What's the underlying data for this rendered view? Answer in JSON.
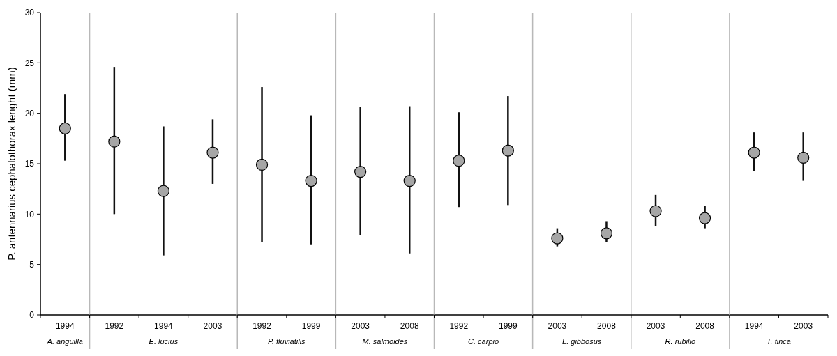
{
  "chart_data": [
    {
      "type": "scatter",
      "xlabel": "A. anguilla",
      "ylabel": "P. antennarius cephalothorax lenght (mm)",
      "categories": [
        "1994"
      ],
      "values": [
        18.5
      ],
      "errors": [
        [
          15.3,
          21.9
        ]
      ],
      "color": "#a6a6a6",
      "marker": "circle",
      "ylim": [
        0,
        30
      ],
      "yticks": [
        0,
        5,
        10,
        15,
        20,
        25,
        30
      ]
    },
    {
      "type": "scatter",
      "xlabel": "E. lucius",
      "categories": [
        "1992",
        "1994",
        "2003"
      ],
      "values": [
        17.2,
        12.3,
        16.1
      ],
      "errors": [
        [
          10.0,
          24.6
        ],
        [
          5.9,
          18.7
        ],
        [
          13.0,
          19.4
        ]
      ],
      "color": "#a6a6a6",
      "marker": "circle",
      "ylim": [
        0,
        30
      ],
      "tick_labels": "x"
    },
    {
      "type": "scatter",
      "xlabel": "P. fluviatilis",
      "categories": [
        "1992",
        "1999"
      ],
      "values": [
        14.9,
        13.3
      ],
      "errors": [
        [
          7.2,
          22.6
        ],
        [
          7.0,
          19.8
        ]
      ],
      "color": "#a6a6a6",
      "marker": "circle",
      "ylim": [
        0,
        30
      ],
      "tick_labels": "x"
    },
    {
      "type": "scatter",
      "xlabel": "M. salmoides",
      "categories": [
        "2003",
        "2008"
      ],
      "values": [
        14.2,
        13.3
      ],
      "errors": [
        [
          7.9,
          20.6
        ],
        [
          6.1,
          20.7
        ]
      ],
      "color": "#a6a6a6",
      "marker": "circle",
      "ylim": [
        0,
        30
      ],
      "tick_labels": "x"
    },
    {
      "type": "scatter",
      "xlabel": "C. carpio",
      "categories": [
        "1992",
        "1999"
      ],
      "values": [
        15.3,
        16.3
      ],
      "errors": [
        [
          10.7,
          20.1
        ],
        [
          10.9,
          21.7
        ]
      ],
      "color": "#a6a6a6",
      "marker": "circle",
      "ylim": [
        0,
        30
      ],
      "tick_labels": "x"
    },
    {
      "type": "scatter",
      "xlabel": "L. gibbosus",
      "categories": [
        "2003",
        "2008"
      ],
      "values": [
        7.6,
        8.1
      ],
      "errors": [
        [
          6.8,
          8.6
        ],
        [
          7.2,
          9.3
        ]
      ],
      "color": "#a6a6a6",
      "marker": "circle",
      "ylim": [
        0,
        30
      ],
      "tick_labels": "x"
    },
    {
      "type": "scatter",
      "xlabel": "R. rubilio",
      "categories": [
        "2003",
        "2008"
      ],
      "values": [
        10.3,
        9.6
      ],
      "errors": [
        [
          8.8,
          11.9
        ],
        [
          8.6,
          10.8
        ]
      ],
      "color": "#a6a6a6",
      "marker": "circle",
      "ylim": [
        0,
        30
      ],
      "tick_labels": "x"
    },
    {
      "type": "scatter",
      "xlabel": "T. tinca",
      "categories": [
        "1994",
        "2003"
      ],
      "values": [
        16.1,
        15.6
      ],
      "errors": [
        [
          14.3,
          18.1
        ],
        [
          13.3,
          18.1
        ]
      ],
      "color": "#a6a6a6",
      "marker": "circle",
      "ylim": [
        0,
        30
      ],
      "tick_labels": "x"
    }
  ]
}
